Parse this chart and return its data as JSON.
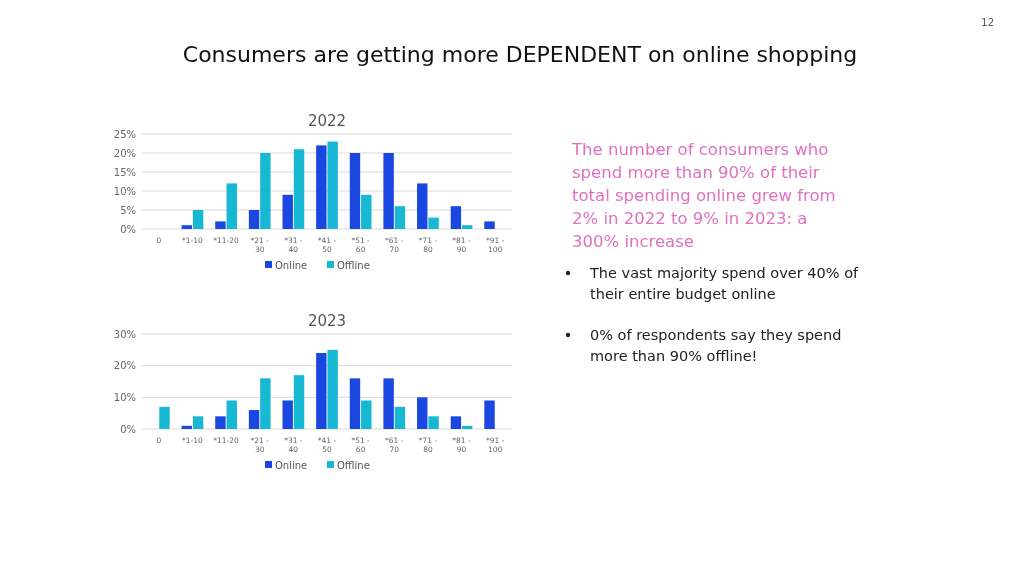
{
  "chart_data": [
    {
      "type": "bar",
      "title": "2022",
      "categories": [
        "0",
        "*1-10",
        "*11-20",
        "*21 - 30",
        "*31 - 40",
        "*41 - 50",
        "*51 - 60",
        "*61 - 70",
        "*71 - 80",
        "*81 - 90",
        "*91 - 100"
      ],
      "series": [
        {
          "name": "Online",
          "color": "#1a47e0",
          "values": [
            0,
            1,
            2,
            5,
            9,
            22,
            20,
            20,
            12,
            6,
            2
          ]
        },
        {
          "name": "Offline",
          "color": "#17b8d4",
          "values": [
            0,
            5,
            12,
            20,
            21,
            23,
            9,
            6,
            3,
            1,
            0
          ]
        }
      ],
      "ylim": [
        0,
        25
      ],
      "yticks": [
        {
          "value": 0,
          "label": "0%"
        },
        {
          "value": 5,
          "label": "5%"
        },
        {
          "value": 10,
          "label": "10%"
        },
        {
          "value": 15,
          "label": "15%"
        },
        {
          "value": 20,
          "label": "20%"
        },
        {
          "value": 25,
          "label": "25%"
        }
      ],
      "grid": "y",
      "legend": "bottom"
    },
    {
      "type": "bar",
      "title": "2023",
      "categories": [
        "0",
        "*1-10",
        "*11-20",
        "*21 - 30",
        "*31 - 40",
        "*41 - 50",
        "*51 - 60",
        "*61 - 70",
        "*71 - 80",
        "*81 - 90",
        "*91 - 100"
      ],
      "series": [
        {
          "name": "Online",
          "color": "#1a47e0",
          "values": [
            0,
            1,
            4,
            6,
            9,
            24,
            16,
            16,
            10,
            4,
            9
          ]
        },
        {
          "name": "Offline",
          "color": "#17b8d4",
          "values": [
            7,
            4,
            9,
            16,
            17,
            25,
            9,
            7,
            4,
            1,
            0
          ]
        }
      ],
      "ylim": [
        0,
        30
      ],
      "yticks": [
        {
          "value": 0,
          "label": "0%"
        },
        {
          "value": 10,
          "label": "10%"
        },
        {
          "value": 20,
          "label": "20%"
        },
        {
          "value": 30,
          "label": "30%"
        }
      ],
      "grid": "y",
      "legend": "bottom"
    },
    {
      "type": "other",
      "title": "Consumers are getting more DEPENDENT on online shopping",
      "annotations": [
        "The number of consumers who spend more than 90% of their total spending online grew from 2% in 2022 to 9% in 2023: a 300% increase",
        "The vast majority spend over 40% of their entire budget online",
        "0% of respondents say they spend more than 90% offline!",
        "12"
      ]
    }
  ]
}
